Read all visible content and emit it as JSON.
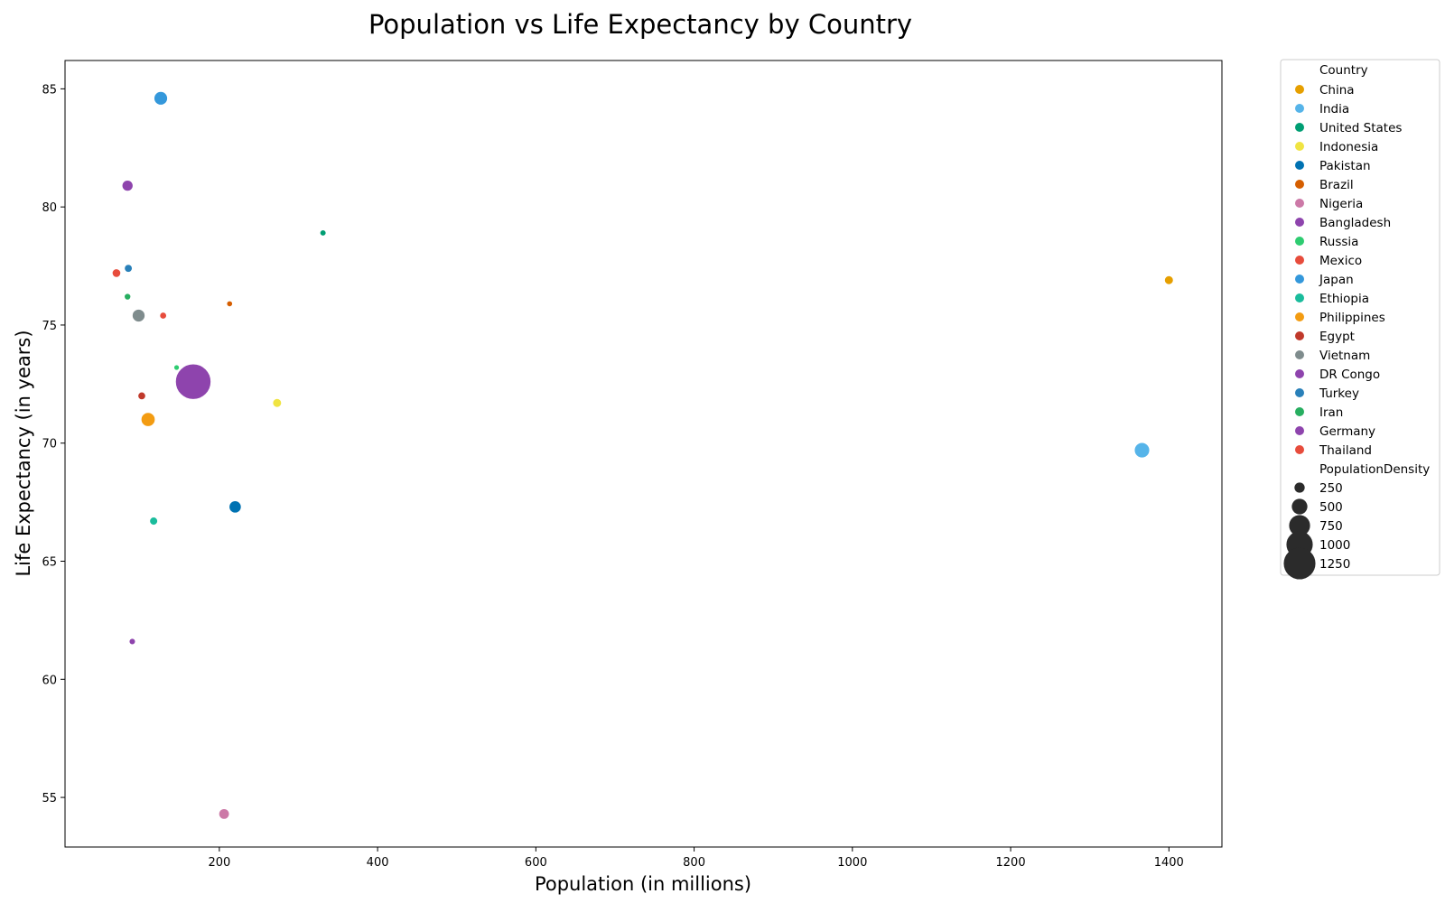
{
  "chart_data": {
    "type": "scatter",
    "title": "Population vs Life Expectancy by Country",
    "xlabel": "Population (in millions)",
    "ylabel": "Life Expectancy (in years)",
    "xlim": [
      5,
      1467
    ],
    "ylim": [
      52.9,
      86.2
    ],
    "xticks": [
      200,
      400,
      600,
      800,
      1000,
      1200,
      1400
    ],
    "yticks": [
      55,
      60,
      65,
      70,
      75,
      80,
      85
    ],
    "grid": false,
    "legend_placement": "outside-right",
    "hue_title": "Country",
    "size_title": "PopulationDensity",
    "size_legend": [
      250,
      500,
      750,
      1000,
      1250
    ],
    "points": [
      {
        "country": "China",
        "population": 1400,
        "life_expectancy": 76.9,
        "density": 150,
        "color": "#e69f00"
      },
      {
        "country": "India",
        "population": 1366,
        "life_expectancy": 69.7,
        "density": 420,
        "color": "#56b4e9"
      },
      {
        "country": "United States",
        "population": 331,
        "life_expectancy": 78.9,
        "density": 36,
        "color": "#009e73"
      },
      {
        "country": "Indonesia",
        "population": 273,
        "life_expectancy": 71.7,
        "density": 150,
        "color": "#f0e442"
      },
      {
        "country": "Pakistan",
        "population": 220,
        "life_expectancy": 67.3,
        "density": 290,
        "color": "#0072b2"
      },
      {
        "country": "Brazil",
        "population": 213,
        "life_expectancy": 75.9,
        "density": 25,
        "color": "#d55e00"
      },
      {
        "country": "Nigeria",
        "population": 206,
        "life_expectancy": 54.3,
        "density": 220,
        "color": "#cc79a7"
      },
      {
        "country": "Bangladesh",
        "population": 167,
        "life_expectancy": 72.6,
        "density": 1265,
        "color": "#8e44ad"
      },
      {
        "country": "Russia",
        "population": 146,
        "life_expectancy": 73.2,
        "density": 9,
        "color": "#2ecc71"
      },
      {
        "country": "Mexico",
        "population": 129,
        "life_expectancy": 75.4,
        "density": 66,
        "color": "#e74c3c"
      },
      {
        "country": "Japan",
        "population": 126,
        "life_expectancy": 84.6,
        "density": 347,
        "color": "#3498db"
      },
      {
        "country": "Ethiopia",
        "population": 117,
        "life_expectancy": 66.7,
        "density": 115,
        "color": "#1abc9c"
      },
      {
        "country": "Philippines",
        "population": 110,
        "life_expectancy": 71.0,
        "density": 368,
        "color": "#f39c12"
      },
      {
        "country": "Egypt",
        "population": 102,
        "life_expectancy": 72.0,
        "density": 103,
        "color": "#c0392b"
      },
      {
        "country": "Vietnam",
        "population": 98,
        "life_expectancy": 75.4,
        "density": 314,
        "color": "#7f8c8d"
      },
      {
        "country": "DR Congo",
        "population": 90,
        "life_expectancy": 61.6,
        "density": 40,
        "color": "#8e44ad"
      },
      {
        "country": "Turkey",
        "population": 85,
        "life_expectancy": 77.4,
        "density": 110,
        "color": "#2980b9"
      },
      {
        "country": "Iran",
        "population": 84,
        "life_expectancy": 76.2,
        "density": 52,
        "color": "#27ae60"
      },
      {
        "country": "Germany",
        "population": 84,
        "life_expectancy": 80.9,
        "density": 240,
        "color": "#8e44ad"
      },
      {
        "country": "Thailand",
        "population": 70,
        "life_expectancy": 77.2,
        "density": 137,
        "color": "#e74c3c"
      }
    ]
  }
}
